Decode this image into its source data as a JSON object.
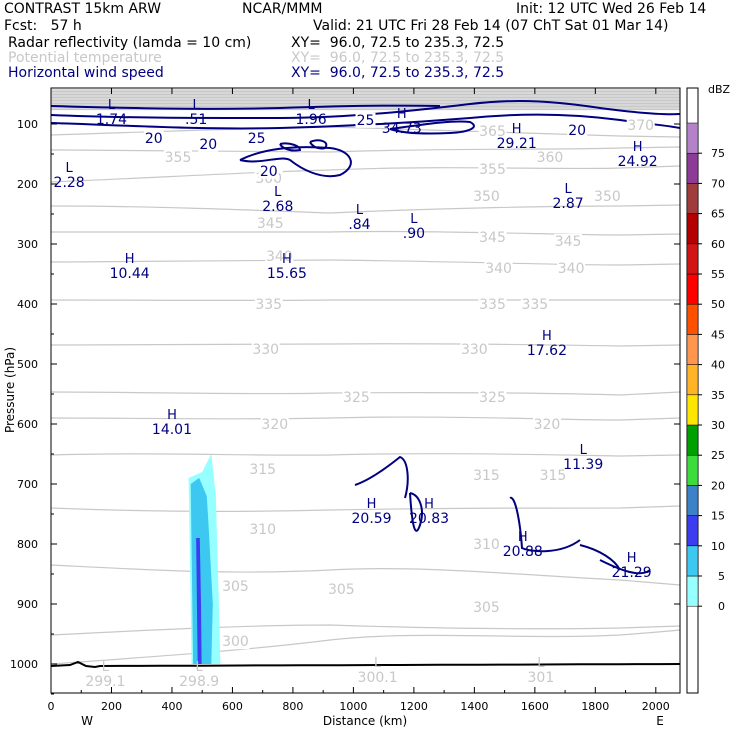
{
  "header": {
    "model": "CONTRAST 15km ARW",
    "org": "NCAR/MMM",
    "init": "Init: 12 UTC Wed 26 Feb 14",
    "fcst": "Fcst:   57 h",
    "valid": "Valid: 21 UTC Fri 28 Feb 14 (07 ChT Sat 01 Mar 14)",
    "fields": [
      {
        "name": "Radar reflectivity (lamda = 10 cm)",
        "xy": "XY=  96.0, 72.5 to 235.3, 72.5",
        "color": "#000000"
      },
      {
        "name": "Potential temperature",
        "xy": "XY=  96.0, 72.5 to 235.3, 72.5",
        "color": "#c8c8c8"
      },
      {
        "name": "Horizontal wind speed",
        "xy": "XY=  96.0, 72.5 to 235.3, 72.5",
        "color": "#000080"
      }
    ]
  },
  "chart_data": {
    "type": "cross-section",
    "xlabel": "Distance (km)",
    "ylabel": "Pressure (hPa)",
    "xlim": [
      0,
      2080
    ],
    "ylim": [
      1050,
      60
    ],
    "x_ticks": [
      0,
      200,
      400,
      600,
      800,
      1000,
      1200,
      1400,
      1600,
      1800,
      2000
    ],
    "y_ticks": [
      100,
      200,
      300,
      400,
      500,
      600,
      700,
      800,
      900,
      1000
    ],
    "west_label": "W",
    "east_label": "E",
    "colorbar": {
      "unit": "dBZ",
      "levels": [
        "0",
        "5",
        "10",
        "15",
        "20",
        "25",
        "30",
        "35",
        "40",
        "45",
        "50",
        "55",
        "60",
        "65",
        "70",
        "75"
      ],
      "colors": [
        "#96ffff",
        "#3cc8f0",
        "#3c3cf0",
        "#3c82c8",
        "#3cdc3c",
        "#00a000",
        "#ffe600",
        "#ffb428",
        "#ff9650",
        "#ff5000",
        "#ff0000",
        "#d21414",
        "#b40000",
        "#a03c3c",
        "#8c3c96",
        "#b482c8"
      ]
    },
    "theta_contours": {
      "color": "#c8c8c8",
      "labels": [
        {
          "text": "300",
          "x": 610,
          "p": 962
        },
        {
          "text": "305",
          "x": 610,
          "p": 870
        },
        {
          "text": "305",
          "x": 960,
          "p": 875
        },
        {
          "text": "305",
          "x": 1440,
          "p": 905
        },
        {
          "text": "310",
          "x": 700,
          "p": 775
        },
        {
          "text": "310",
          "x": 1440,
          "p": 800
        },
        {
          "text": "315",
          "x": 700,
          "p": 675
        },
        {
          "text": "315",
          "x": 1440,
          "p": 685
        },
        {
          "text": "315",
          "x": 1660,
          "p": 685
        },
        {
          "text": "320",
          "x": 740,
          "p": 600
        },
        {
          "text": "320",
          "x": 1640,
          "p": 600
        },
        {
          "text": "325",
          "x": 1010,
          "p": 555
        },
        {
          "text": "325",
          "x": 1460,
          "p": 555
        },
        {
          "text": "330",
          "x": 710,
          "p": 475
        },
        {
          "text": "330",
          "x": 1400,
          "p": 475
        },
        {
          "text": "335",
          "x": 720,
          "p": 400
        },
        {
          "text": "335",
          "x": 1460,
          "p": 400
        },
        {
          "text": "335",
          "x": 1600,
          "p": 400
        },
        {
          "text": "340",
          "x": 1480,
          "p": 340
        },
        {
          "text": "340",
          "x": 1720,
          "p": 340
        },
        {
          "text": "340",
          "x": 755,
          "p": 320
        },
        {
          "text": "345",
          "x": 1460,
          "p": 288
        },
        {
          "text": "345",
          "x": 1710,
          "p": 295
        },
        {
          "text": "345",
          "x": 725,
          "p": 265
        },
        {
          "text": "350",
          "x": 1440,
          "p": 220
        },
        {
          "text": "350",
          "x": 1840,
          "p": 220
        },
        {
          "text": "355",
          "x": 420,
          "p": 155
        },
        {
          "text": "355",
          "x": 1460,
          "p": 175
        },
        {
          "text": "360",
          "x": 1650,
          "p": 155
        },
        {
          "text": "365",
          "x": 1460,
          "p": 112
        },
        {
          "text": "370",
          "x": 1950,
          "p": 102
        },
        {
          "text": "300",
          "x": 720,
          "p": 190
        }
      ]
    },
    "wind_contours": {
      "color": "#000080",
      "labels": [
        {
          "text": "20",
          "x": 340,
          "p": 123
        },
        {
          "text": "25",
          "x": 680,
          "p": 123
        },
        {
          "text": "20",
          "x": 720,
          "p": 178
        },
        {
          "text": "25",
          "x": 1040,
          "p": 93
        },
        {
          "text": "20",
          "x": 1740,
          "p": 110
        },
        {
          "text": "20",
          "x": 520,
          "p": 133
        }
      ]
    },
    "extrema": [
      {
        "kind": "L",
        "value": "1.74",
        "x": 200,
        "p": 75,
        "color": "#000080"
      },
      {
        "kind": "L",
        "value": ".51",
        "x": 480,
        "p": 75,
        "color": "#000080"
      },
      {
        "kind": "L",
        "value": "1.96",
        "x": 860,
        "p": 75,
        "color": "#000080"
      },
      {
        "kind": "H",
        "value": "34.73",
        "x": 1160,
        "p": 90,
        "color": "#000080"
      },
      {
        "kind": "H",
        "value": "29.21",
        "x": 1540,
        "p": 115,
        "color": "#000080"
      },
      {
        "kind": "H",
        "value": "24.92",
        "x": 1940,
        "p": 145,
        "color": "#000080"
      },
      {
        "kind": "L",
        "value": "2.28",
        "x": 60,
        "p": 180,
        "color": "#000080"
      },
      {
        "kind": "L",
        "value": "2.68",
        "x": 750,
        "p": 220,
        "color": "#000080"
      },
      {
        "kind": "L",
        "value": ".84",
        "x": 1020,
        "p": 250,
        "color": "#000080"
      },
      {
        "kind": "L",
        "value": ".90",
        "x": 1200,
        "p": 265,
        "color": "#000080"
      },
      {
        "kind": "L",
        "value": "2.87",
        "x": 1710,
        "p": 215,
        "color": "#000080"
      },
      {
        "kind": "H",
        "value": "10.44",
        "x": 260,
        "p": 332,
        "color": "#000080"
      },
      {
        "kind": "H",
        "value": "15.65",
        "x": 780,
        "p": 332,
        "color": "#000080"
      },
      {
        "kind": "H",
        "value": "17.62",
        "x": 1640,
        "p": 460,
        "color": "#000080"
      },
      {
        "kind": "H",
        "value": "14.01",
        "x": 400,
        "p": 592,
        "color": "#000080"
      },
      {
        "kind": "L",
        "value": "11.39",
        "x": 1760,
        "p": 650,
        "color": "#000080"
      },
      {
        "kind": "H",
        "value": "20.59",
        "x": 1060,
        "p": 740,
        "color": "#000080"
      },
      {
        "kind": "H",
        "value": "20.83",
        "x": 1250,
        "p": 740,
        "color": "#000080"
      },
      {
        "kind": "H",
        "value": "20.88",
        "x": 1560,
        "p": 795,
        "color": "#000080"
      },
      {
        "kind": "H",
        "value": "21.29",
        "x": 1920,
        "p": 830,
        "color": "#000080"
      },
      {
        "kind": "L",
        "value": "299.1",
        "x": 180,
        "p": 1012,
        "color": "#c8c8c8"
      },
      {
        "kind": "L",
        "value": "298.9",
        "x": 490,
        "p": 1012,
        "color": "#c8c8c8"
      },
      {
        "kind": "L",
        "value": "300.1",
        "x": 1080,
        "p": 1005,
        "color": "#c8c8c8"
      },
      {
        "kind": "L",
        "value": "301",
        "x": 1620,
        "p": 1005,
        "color": "#c8c8c8"
      }
    ]
  }
}
